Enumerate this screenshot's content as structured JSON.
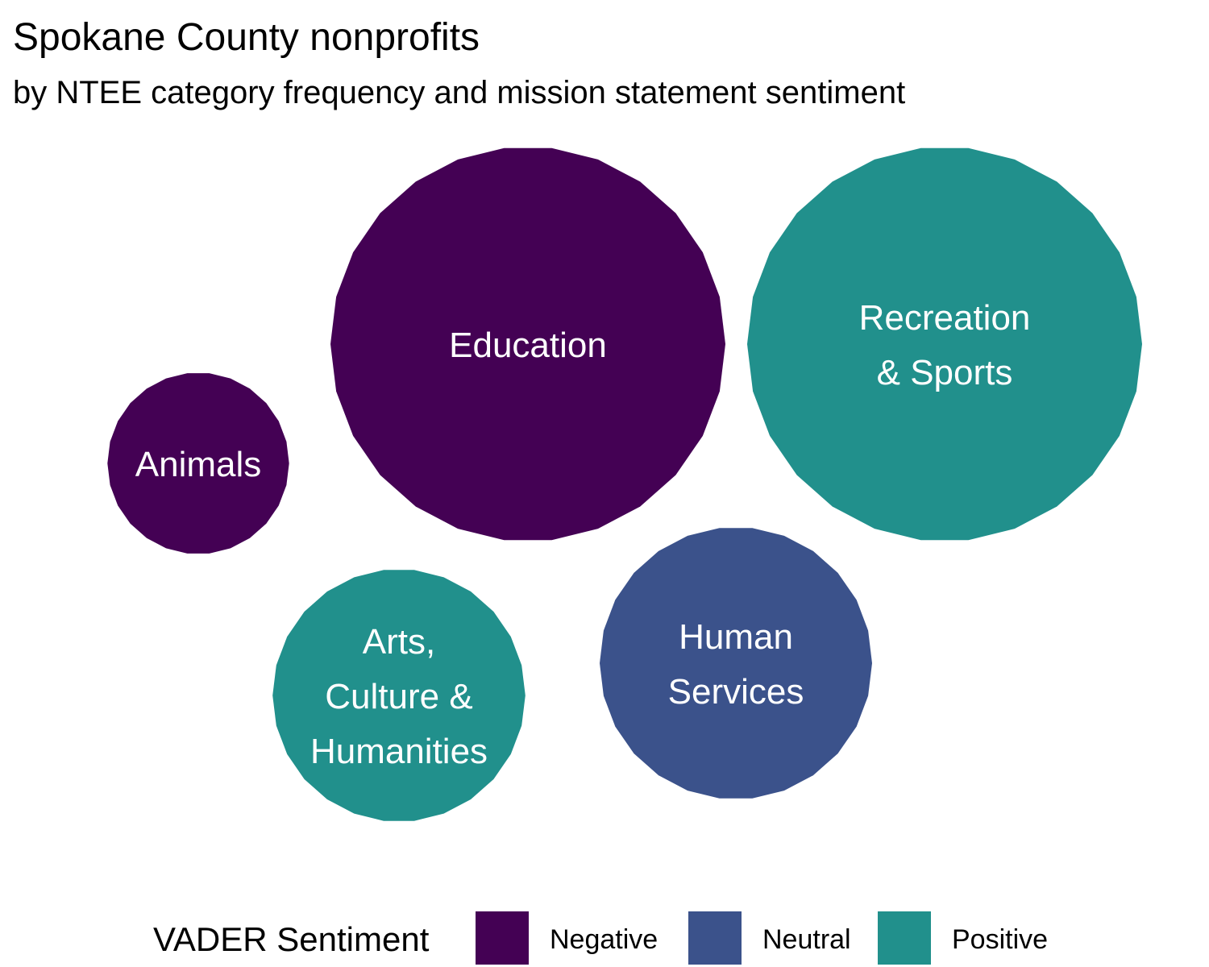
{
  "chart_data": {
    "type": "bubble",
    "title": "Spokane County nonprofits",
    "subtitle": "by NTEE category frequency and mission statement sentiment",
    "colors": {
      "Negative": "#440154",
      "Neutral": "#3B528B",
      "Positive": "#21908C"
    },
    "bubbles": [
      {
        "category": "Education",
        "label_lines": [
          "Education"
        ],
        "sentiment": "Negative",
        "relative_size": 1.0
      },
      {
        "category": "Recreation & Sports",
        "label_lines": [
          "Recreation",
          "& Sports"
        ],
        "sentiment": "Positive",
        "relative_size": 1.0
      },
      {
        "category": "Human Services",
        "label_lines": [
          "Human",
          "Services"
        ],
        "sentiment": "Neutral",
        "relative_size": 0.69
      },
      {
        "category": "Arts, Culture & Humanities",
        "label_lines": [
          "Arts,",
          "Culture &",
          "Humanities"
        ],
        "sentiment": "Positive",
        "relative_size": 0.64
      },
      {
        "category": "Animals",
        "label_lines": [
          "Animals"
        ],
        "sentiment": "Negative",
        "relative_size": 0.46
      }
    ],
    "legend": {
      "title": "VADER Sentiment",
      "position": "bottom",
      "items": [
        "Negative",
        "Neutral",
        "Positive"
      ]
    }
  }
}
